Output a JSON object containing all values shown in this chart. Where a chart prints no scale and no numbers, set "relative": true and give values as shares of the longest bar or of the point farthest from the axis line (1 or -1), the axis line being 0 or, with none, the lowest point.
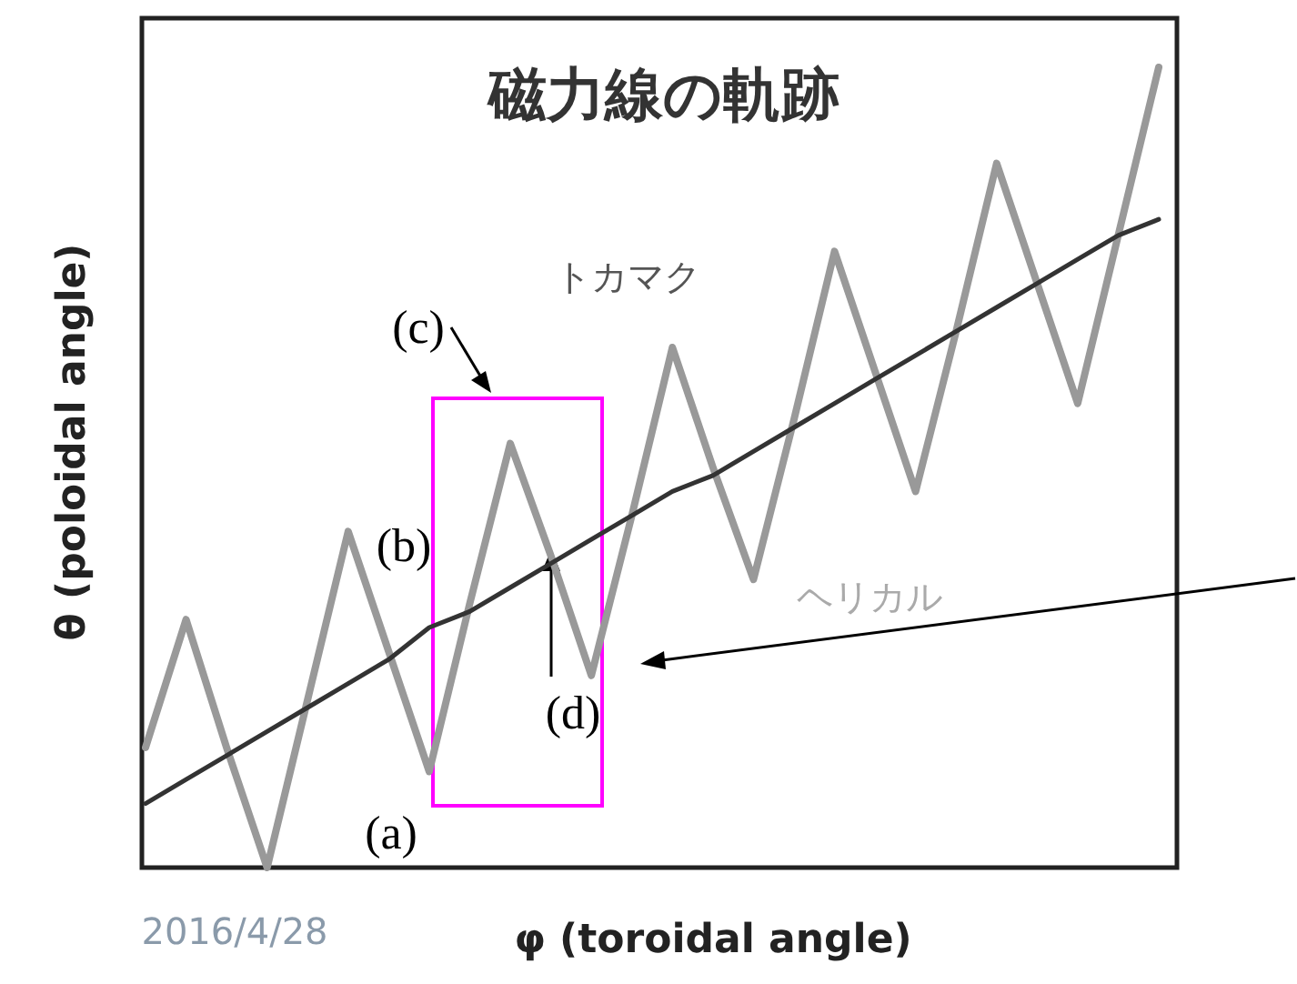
{
  "chart_data": {
    "type": "line",
    "title": "磁力線の軌跡",
    "xlabel": "φ (toroidal angle)",
    "ylabel": "θ (poloidal angle)",
    "relative": true,
    "marker": "none",
    "categories": [
      null,
      null,
      null,
      null,
      null,
      null,
      null,
      null,
      null,
      null,
      null,
      null,
      null,
      null,
      null,
      null,
      null,
      null,
      null,
      null,
      null,
      null,
      null,
      null,
      null,
      null
    ],
    "series": [
      {
        "color": "#999999",
        "values": [
          0.15,
          0.31,
          0.15,
          0,
          0.21,
          0.42,
          0.27,
          0.12,
          0.33,
          0.53,
          0.39,
          0.24,
          0.44,
          0.65,
          0.5,
          0.36,
          0.56,
          0.77,
          0.62,
          0.47,
          0.67,
          0.88,
          0.73,
          0.58,
          0.79,
          1
        ]
      },
      {
        "color": "#333333",
        "values": [
          0.08,
          0.11,
          0.14,
          0.17,
          0.2,
          0.23,
          0.26,
          0.3,
          0.32,
          0.35,
          0.38,
          0.41,
          0.44,
          0.47,
          0.49,
          0.52,
          0.55,
          0.58,
          0.61,
          0.64,
          0.67,
          0.7,
          0.73,
          0.76,
          0.79,
          0.81
        ]
      }
    ],
    "annotations": [
      "(a)",
      "(b)",
      "(c)",
      "(d)",
      "2016/4/28",
      "トカマク",
      "ヘリカル"
    ]
  }
}
